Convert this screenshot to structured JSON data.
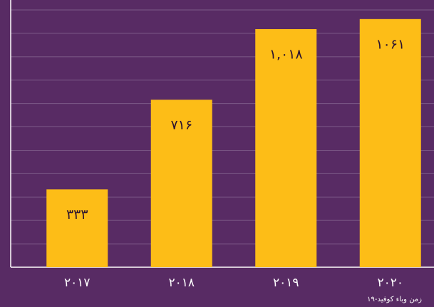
{
  "chart_data": {
    "type": "bar",
    "categories": [
      "۲۰۱۷",
      "۲۰۱۸",
      "۲۰۱۹",
      "۲۰۲۰"
    ],
    "values": [
      333,
      716,
      1018,
      1061
    ],
    "value_labels": [
      "۳۳۳",
      "۷۱۶",
      "۱,۰۱۸",
      "۱۰۶۱"
    ],
    "color": "#fdbd17",
    "annotation": "زمن وباء كوفيد-١٩",
    "ylim": [
      0,
      1100
    ],
    "yticks": [
      0,
      100,
      200,
      300,
      400,
      500,
      600,
      700,
      800,
      900,
      1000,
      1100
    ],
    "grid": true
  }
}
